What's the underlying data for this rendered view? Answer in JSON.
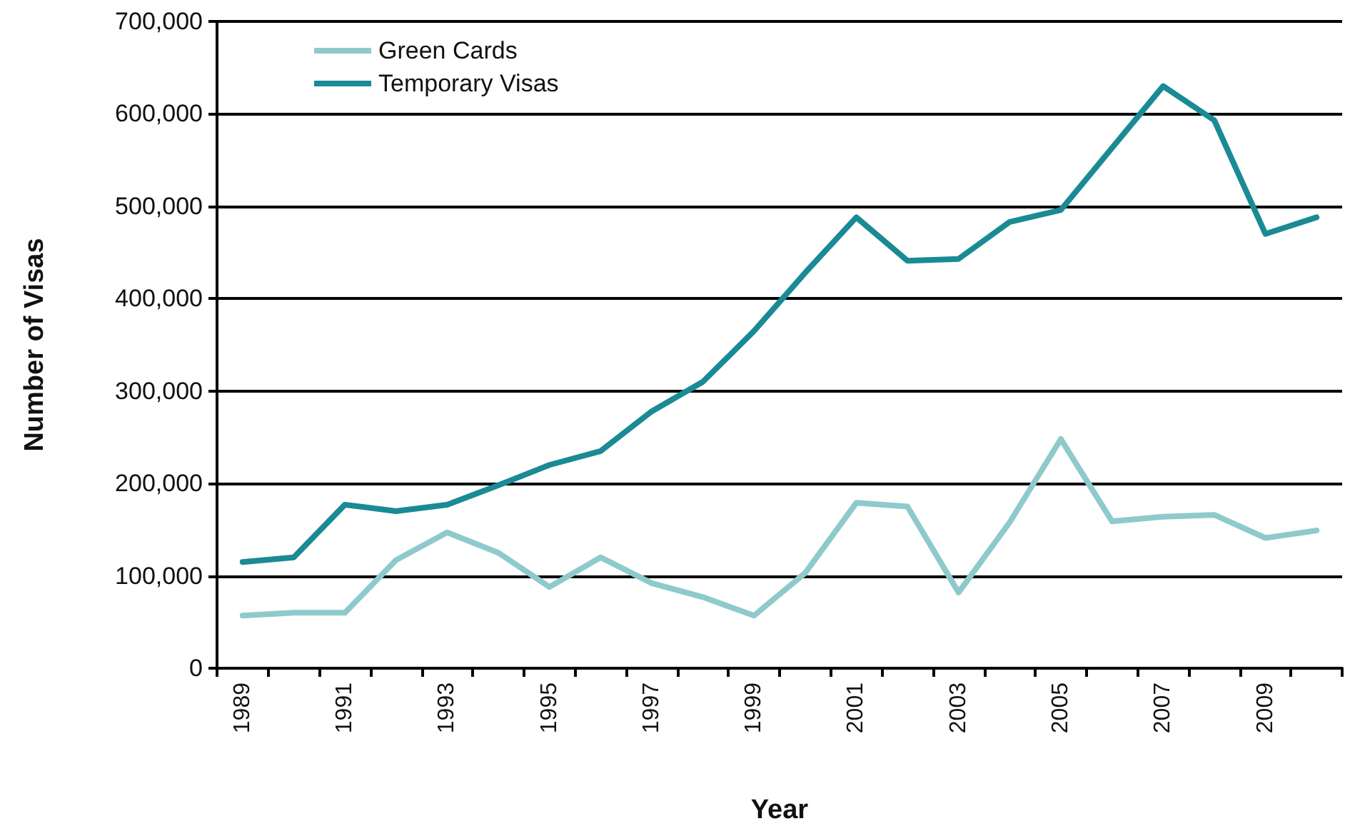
{
  "chart_data": {
    "type": "line",
    "xlabel": "Year",
    "ylabel": "Number of Visas",
    "categories": [
      "1989",
      null,
      "1991",
      null,
      "1993",
      null,
      "1995",
      null,
      "1997",
      null,
      "1999",
      null,
      "2001",
      null,
      "2003",
      null,
      "2005",
      null,
      "2007",
      null,
      "2009",
      null
    ],
    "series": [
      {
        "name": "Green Cards",
        "color": "#8ecacb",
        "values": [
          57000,
          60000,
          60000,
          117000,
          147000,
          125000,
          88000,
          120000,
          92000,
          77000,
          57000,
          103000,
          179000,
          175000,
          82000,
          158000,
          248000,
          159000,
          164000,
          166000,
          141000,
          149000
        ]
      },
      {
        "name": "Temporary Visas",
        "color": "#1a8a95",
        "values": [
          115000,
          120000,
          177000,
          170000,
          177000,
          198000,
          220000,
          235000,
          278000,
          310000,
          365000,
          428000,
          488000,
          441000,
          443000,
          483000,
          496000,
          563000,
          630000,
          593000,
          470000,
          488000
        ]
      }
    ],
    "ylim": [
      0,
      700000
    ],
    "yticks": [
      0,
      {
        "value": 100000,
        "label": "100,000"
      },
      {
        "value": 200000,
        "label": "200,000"
      },
      {
        "value": 300000,
        "label": "300,000"
      },
      {
        "value": 400000,
        "label": "400,000"
      },
      {
        "value": 500000,
        "label": "500,000"
      },
      {
        "value": 600000,
        "label": "600,000"
      },
      {
        "value": 700000,
        "label": "700,000"
      }
    ],
    "grid": "y",
    "legend": "top left",
    "marker": "none",
    "line_style": "solid"
  }
}
